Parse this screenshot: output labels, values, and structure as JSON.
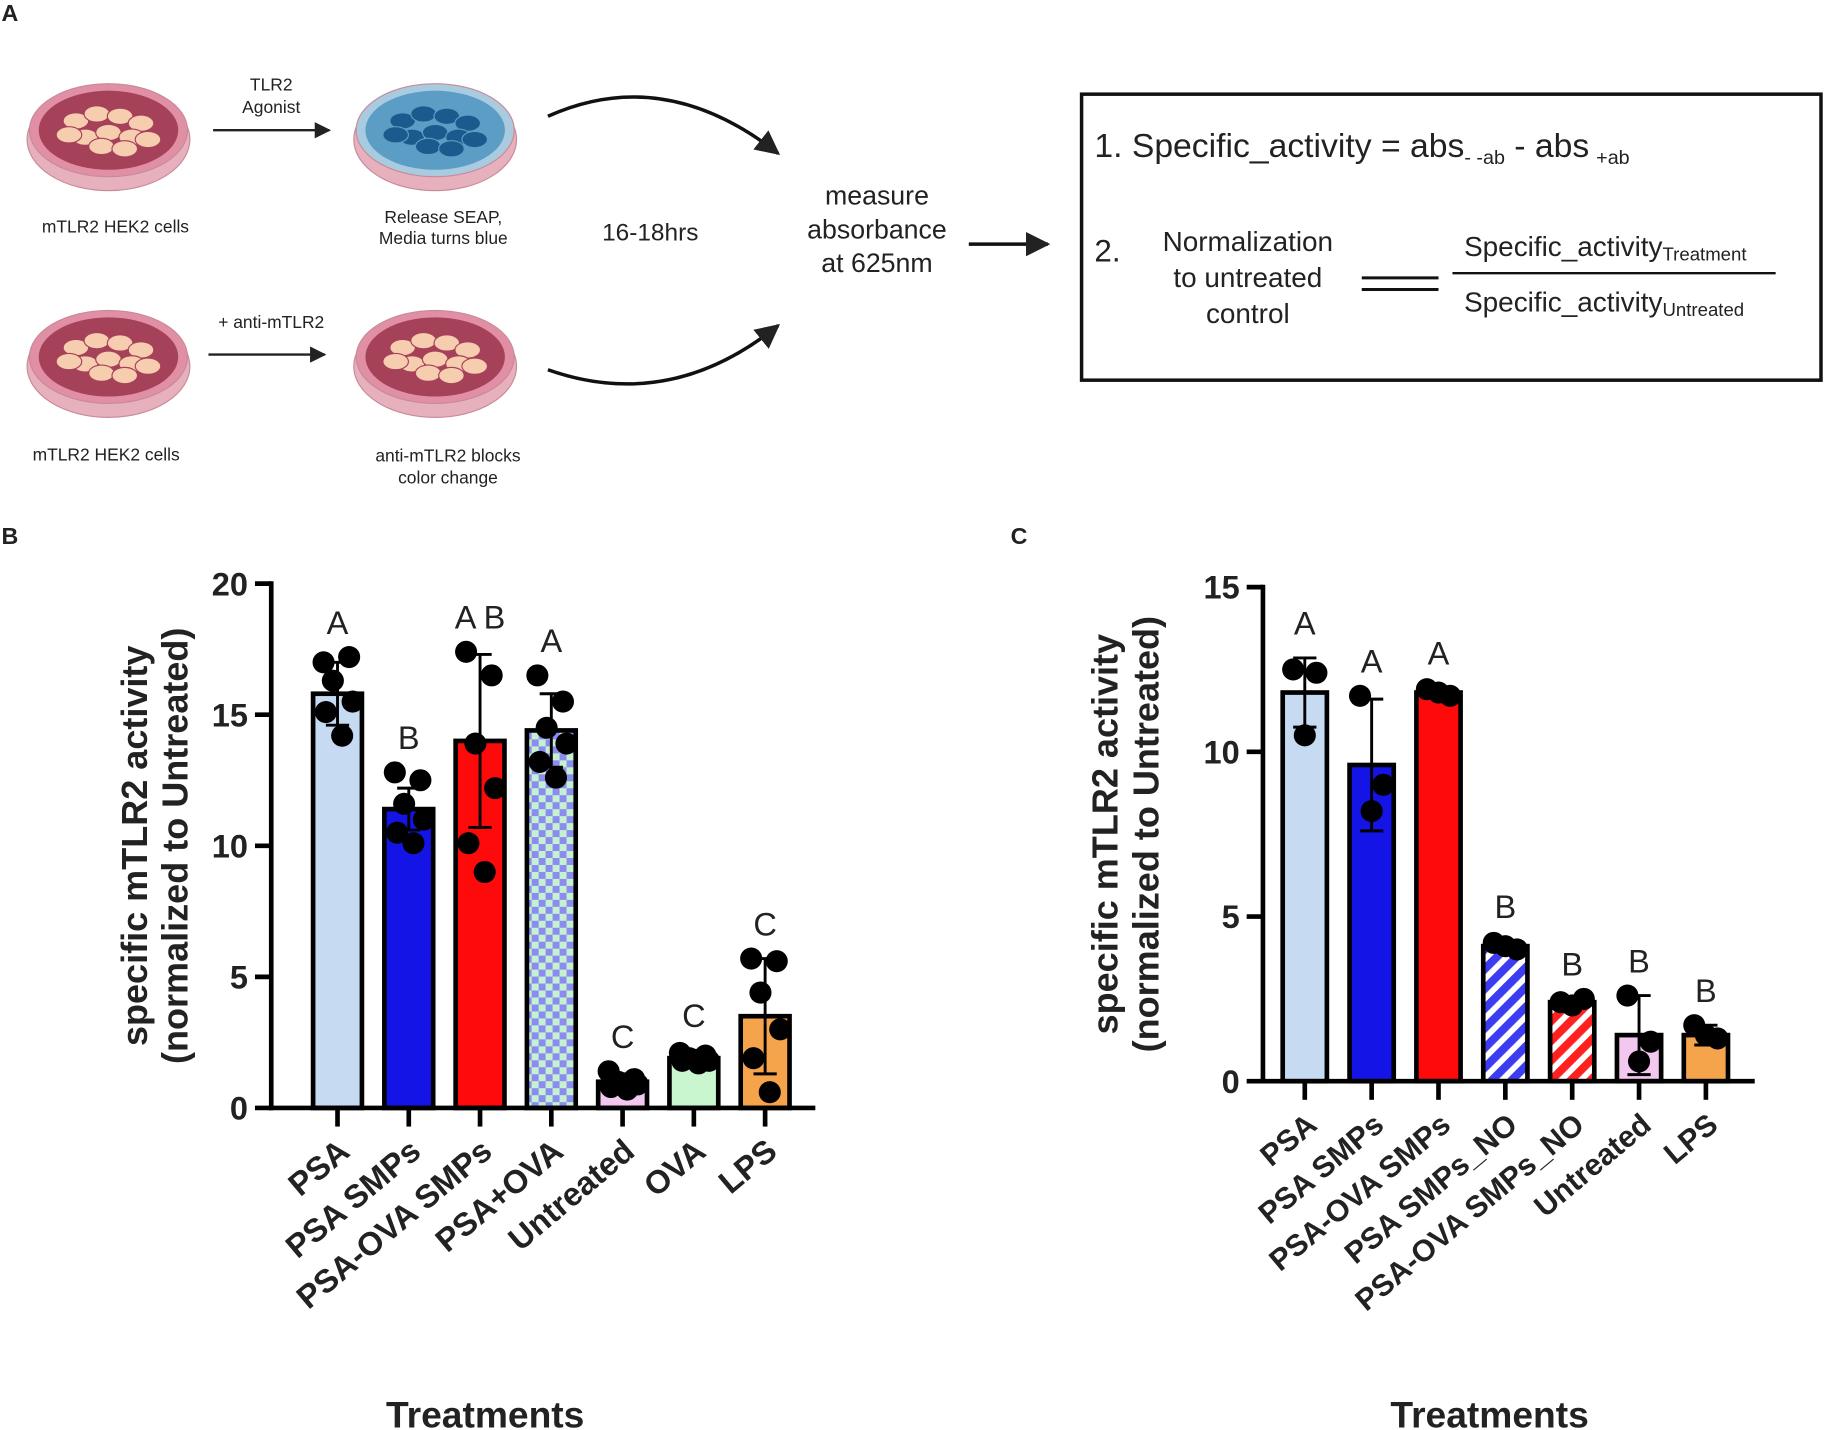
{
  "panel_labels": [
    "A",
    "B",
    "C"
  ],
  "diagram": {
    "top_arrow_label": [
      "TLR2",
      "Agonist"
    ],
    "top_left_caption": "mTLR2 HEK2 cells",
    "top_right_caption": [
      "Release SEAP,",
      "Media turns blue"
    ],
    "bottom_arrow_label": "+ anti-mTLR2",
    "bottom_left_caption": "mTLR2 HEK2 cells",
    "bottom_right_caption": [
      "anti-mTLR2 blocks",
      "color change"
    ],
    "duration": "16-18hrs",
    "measure": [
      "measure",
      "absorbance",
      "at 625nm"
    ],
    "formula1": {
      "text": "1. Specific_activity = abs",
      "sub1": "- -ab",
      "mid": "- abs",
      "sub2": "+ab"
    },
    "formula2": {
      "number": "2.",
      "label": [
        "Normalization",
        "to untreated",
        "control"
      ],
      "numerator": "Specific_activity",
      "numerator_sub": "Treatment",
      "denominator": "Specific_activity",
      "denominator_sub": "Untreated"
    }
  },
  "chart_data": [
    {
      "type": "bar",
      "ylabel": [
        "specific mTLR2 activity",
        "(normalized to Untreated)"
      ],
      "xlabel": "Treatments",
      "categories": [
        "PSA",
        "PSA SMPs",
        "PSA-OVA SMPs",
        "PSA+OVA",
        "Untreated",
        "OVA",
        "LPS"
      ],
      "values": [
        15.8,
        11.4,
        14.0,
        14.4,
        1.0,
        1.9,
        3.5
      ],
      "errors": [
        1.2,
        0.8,
        3.3,
        1.4,
        0.3,
        0.3,
        2.2
      ],
      "points": [
        [
          17.0,
          17.2,
          16.3,
          15.5,
          15.1,
          14.2
        ],
        [
          12.8,
          12.5,
          11.6,
          11.0,
          10.5,
          10.1
        ],
        [
          17.4,
          16.5,
          13.9,
          12.2,
          10.1,
          9.0
        ],
        [
          16.5,
          15.5,
          14.5,
          13.9,
          13.2,
          12.6
        ],
        [
          1.4,
          1.1,
          1.0,
          0.9,
          0.8,
          0.7
        ],
        [
          2.1,
          2.0,
          1.9,
          1.8,
          1.8,
          1.7
        ],
        [
          5.7,
          5.6,
          4.4,
          3.0,
          1.9,
          0.6
        ]
      ],
      "annotations": [
        "A",
        "B",
        "A B",
        "A",
        "C",
        "C",
        "C"
      ],
      "colors": [
        "#c6dbf2",
        "#1414e6",
        "#ff0a0a",
        "#8c8cf0",
        "#f2c8f0",
        "#c9f5cf",
        "#f5a44c"
      ],
      "patterns": [
        null,
        null,
        null,
        "checker",
        null,
        null,
        null
      ],
      "ylim": [
        0,
        20
      ],
      "yticks": [
        0,
        5,
        10,
        15,
        20
      ]
    },
    {
      "type": "bar",
      "ylabel": [
        "specific mTLR2 activity",
        "(normalized to Untreated)"
      ],
      "xlabel": "Treatments",
      "categories": [
        "PSA",
        "PSA SMPs",
        "PSA-OVA SMPs",
        "PSA SMPs_NO",
        "PSA-OVA SMPs_NO",
        "Untreated",
        "LPS"
      ],
      "values": [
        11.8,
        9.6,
        11.8,
        4.1,
        2.4,
        1.4,
        1.4
      ],
      "errors": [
        1.05,
        2.0,
        0.15,
        0.15,
        0.1,
        1.2,
        0.3
      ],
      "points": [
        [
          12.5,
          12.4,
          10.5
        ],
        [
          11.7,
          9.0,
          8.2
        ],
        [
          11.9,
          11.7,
          11.8
        ],
        [
          4.2,
          4.0,
          4.1
        ],
        [
          2.4,
          2.5,
          2.3
        ],
        [
          2.6,
          1.2,
          0.6
        ],
        [
          1.7,
          1.3,
          1.4
        ]
      ],
      "annotations": [
        "A",
        "A",
        "A",
        "B",
        "B",
        "B",
        "B"
      ],
      "colors": [
        "#c6dbf2",
        "#1414e6",
        "#ff0a0a",
        "#3c3cf0",
        "#ff2020",
        "#f2c8f0",
        "#f5a44c"
      ],
      "patterns": [
        null,
        null,
        null,
        "stripes",
        "stripes",
        null,
        null
      ],
      "ylim": [
        0,
        15
      ],
      "yticks": [
        0,
        5,
        10,
        15
      ]
    }
  ]
}
